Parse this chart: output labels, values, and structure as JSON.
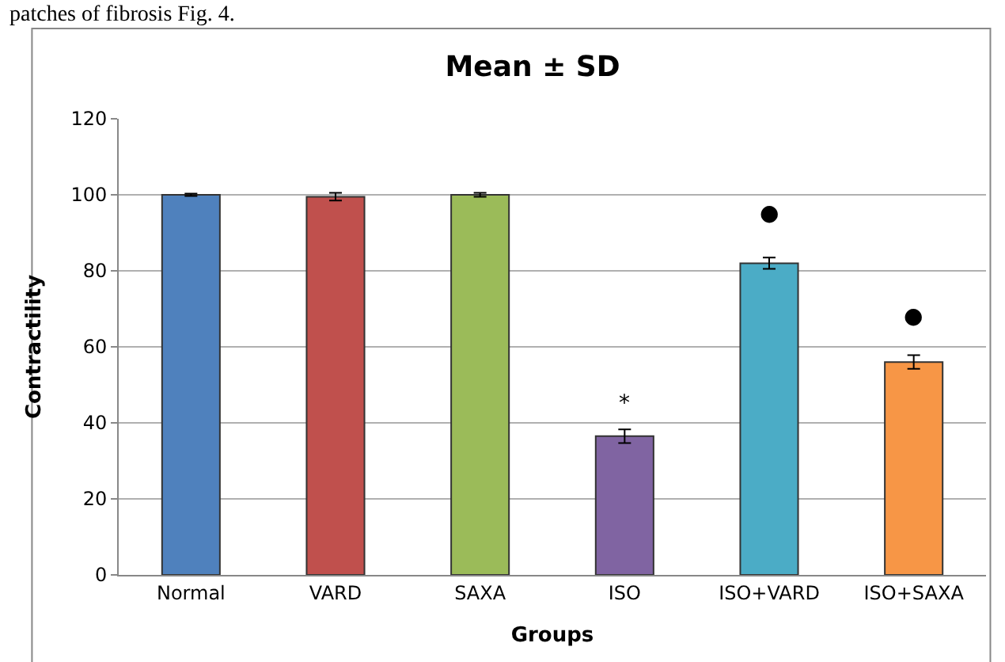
{
  "chart_data": {
    "type": "bar",
    "title": "Mean ± SD",
    "xlabel": "Groups",
    "ylabel": "Contractility",
    "categories": [
      "Normal",
      "VARD",
      "SAXA",
      "ISO",
      "ISO+VARD",
      "ISO+SAXA"
    ],
    "values": [
      100,
      99.5,
      100,
      36.5,
      82,
      56
    ],
    "errors": [
      0.3,
      1,
      0.5,
      1.8,
      1.5,
      1.8
    ],
    "colors": [
      "#4f81bd",
      "#c0504d",
      "#9bbb59",
      "#8064a2",
      "#4bacc6",
      "#f79646"
    ],
    "ylim": [
      0,
      120
    ],
    "yticks": [
      0,
      20,
      40,
      60,
      80,
      100,
      120
    ],
    "grid": "y",
    "annotations": [
      "patches of fibrosis Fig. 4.",
      "*",
      "●",
      "●"
    ]
  }
}
